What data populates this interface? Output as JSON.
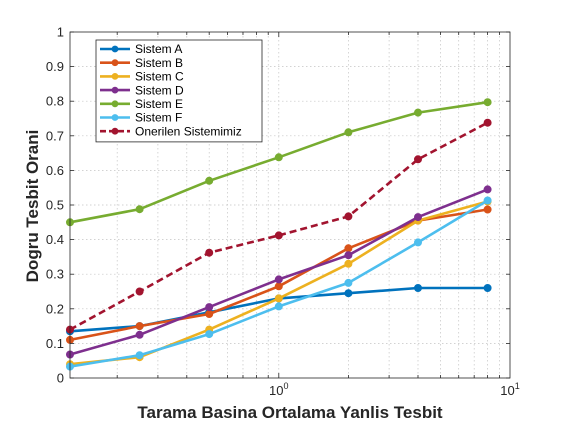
{
  "chart_data": {
    "type": "line",
    "xscale": "log",
    "xlim": [
      0.125,
      10
    ],
    "ylim": [
      0,
      1
    ],
    "grid": "dotted",
    "legend_position": "top-left",
    "xlabel": "Tarama Basina Ortalama Yanlis Tesbit",
    "ylabel": "Dogru Tesbit Orani",
    "x_ticks": [
      {
        "label": "10",
        "sup": "0",
        "value": 1
      },
      {
        "label": "10",
        "sup": "1",
        "value": 10
      }
    ],
    "y_ticks": [
      0,
      0.1,
      0.2,
      0.3,
      0.4,
      0.5,
      0.6,
      0.7,
      0.8,
      0.9,
      1
    ],
    "y_tick_labels": [
      "0",
      "0.1",
      "0.2",
      "0.3",
      "0.4",
      "0.5",
      "0.6",
      "0.7",
      "0.8",
      "0.9",
      "1"
    ],
    "x": [
      0.125,
      0.25,
      0.5,
      1,
      2,
      4,
      8
    ],
    "series": [
      {
        "name": "Sistem A",
        "color": "#0072BD",
        "style": "solid",
        "values": [
          0.135,
          0.15,
          0.19,
          0.23,
          0.245,
          0.26,
          0.26
        ]
      },
      {
        "name": "Sistem B",
        "color": "#D95319",
        "style": "solid",
        "values": [
          0.11,
          0.15,
          0.185,
          0.265,
          0.375,
          0.455,
          0.487
        ]
      },
      {
        "name": "Sistem C",
        "color": "#EDB120",
        "style": "solid",
        "values": [
          0.04,
          0.06,
          0.14,
          0.23,
          0.33,
          0.455,
          0.51
        ]
      },
      {
        "name": "Sistem D",
        "color": "#7E2F8E",
        "style": "solid",
        "values": [
          0.068,
          0.125,
          0.205,
          0.285,
          0.355,
          0.465,
          0.545
        ]
      },
      {
        "name": "Sistem E",
        "color": "#77AC30",
        "style": "solid",
        "values": [
          0.45,
          0.488,
          0.57,
          0.638,
          0.71,
          0.767,
          0.797
        ]
      },
      {
        "name": "Sistem F",
        "color": "#4DBEEE",
        "style": "solid",
        "values": [
          0.033,
          0.066,
          0.127,
          0.207,
          0.275,
          0.392,
          0.513
        ]
      },
      {
        "name": "Onerilen Sistemimiz",
        "color": "#A2142F",
        "style": "dashed",
        "values": [
          0.14,
          0.25,
          0.362,
          0.412,
          0.467,
          0.632,
          0.738
        ]
      }
    ]
  }
}
